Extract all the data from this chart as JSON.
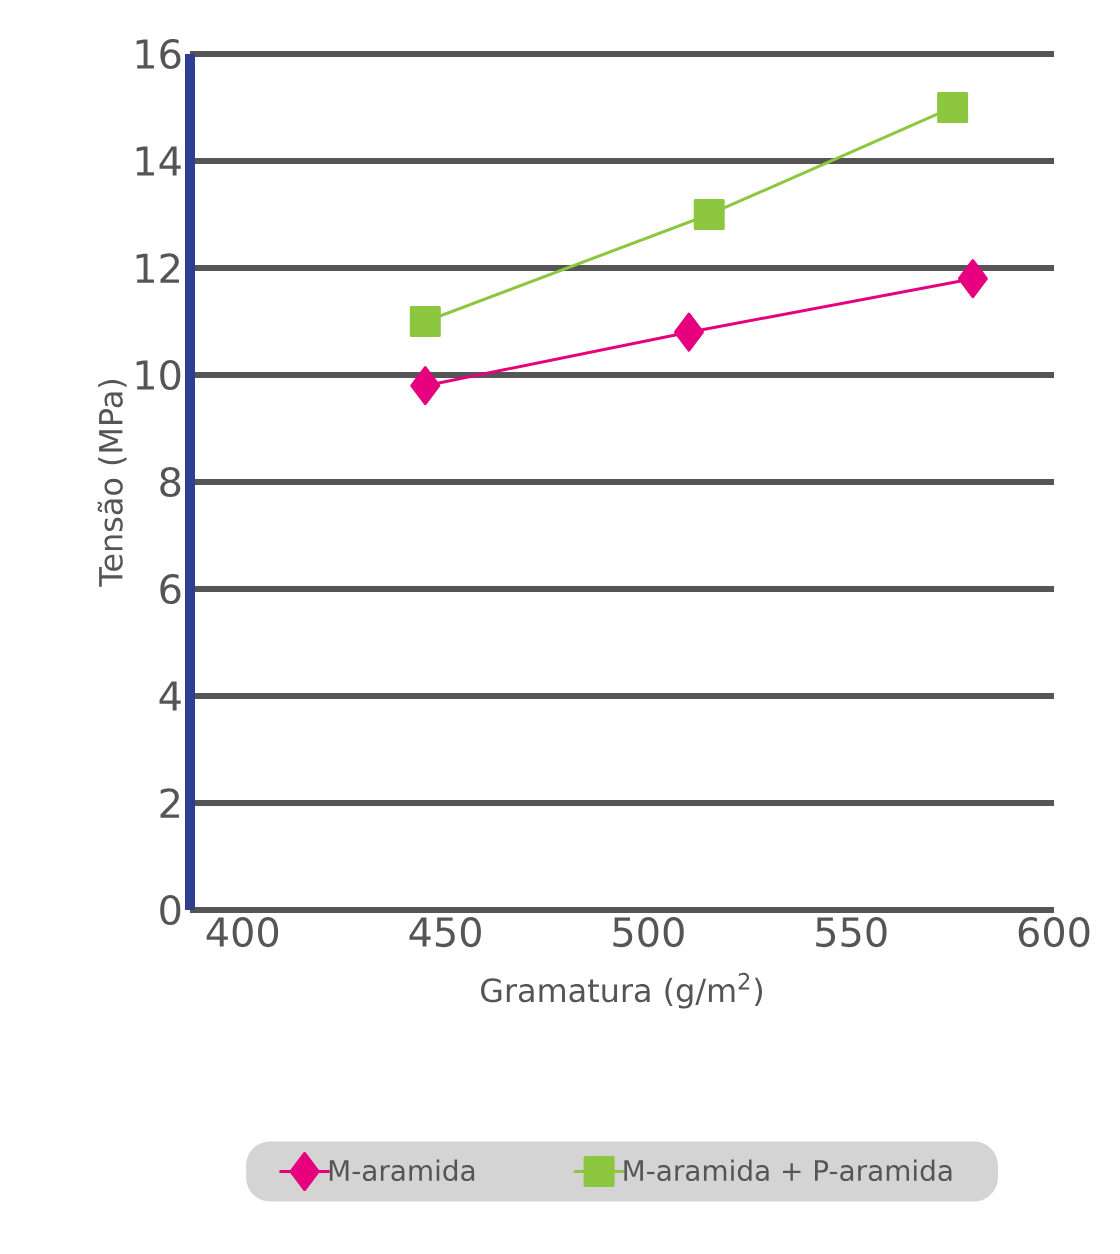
{
  "chart_data": {
    "type": "line",
    "xlabel": "Gramatura (g/m$^{2}$)",
    "ylabel": "Tensão (MPa)",
    "xlim": [
      387,
      600
    ],
    "xticks": [
      400,
      450,
      500,
      550,
      600
    ],
    "ylim": [
      0,
      16
    ],
    "yticks": [
      0,
      2,
      4,
      6,
      8,
      10,
      12,
      14,
      16
    ],
    "grid": "y",
    "legend": "bottom",
    "series": [
      {
        "name": "M-aramida",
        "color": "#e6007e",
        "marker": "diamond",
        "x": [
          445,
          510,
          580
        ],
        "values": [
          9.8,
          10.8,
          11.8
        ]
      },
      {
        "name": "M-aramida + P-aramida",
        "color": "#8dc63f",
        "marker": "square",
        "x": [
          445,
          515,
          575
        ],
        "values": [
          11.0,
          13.0,
          15.0
        ]
      }
    ]
  }
}
